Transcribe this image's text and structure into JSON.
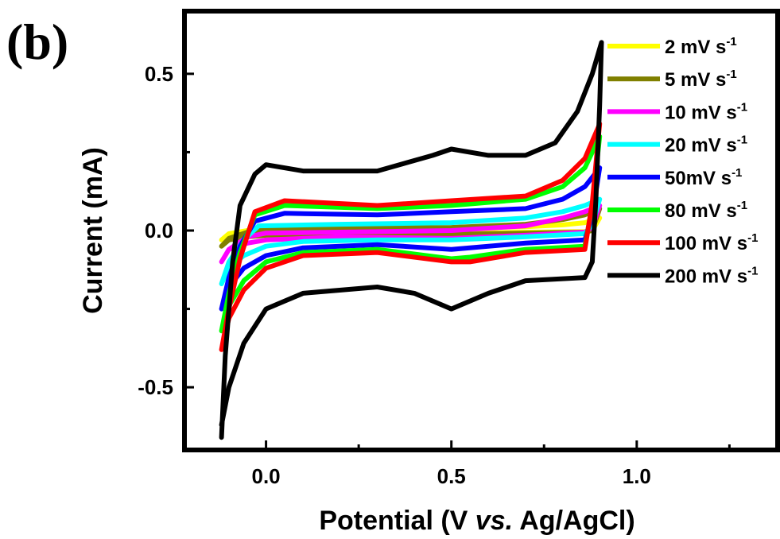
{
  "panel_label": "(b)",
  "colors": {
    "2 mV s-1": "#ffff00",
    "5 mV s-1": "#808000",
    "10 mV s-1": "#ff00ff",
    "20 mV s-1": "#00ffff",
    "50mV s-1": "#0000ff",
    "80 mV s-1": "#00ff00",
    "100 mV s-1": "#ff0000",
    "200 mV s-1": "#000000"
  },
  "chart_data": {
    "type": "line",
    "title": "",
    "xlabel_parts": [
      "Potential (V ",
      "vs.",
      " Ag/AgCl)"
    ],
    "ylabel": "Current (mA)",
    "xlim": [
      -0.22,
      1.38
    ],
    "ylim": [
      -0.7,
      0.7
    ],
    "xticks": [
      0.0,
      0.5,
      1.0
    ],
    "xtick_labels": [
      "0.0",
      "0.5",
      "1.0"
    ],
    "yticks": [
      -0.5,
      0.0,
      0.5
    ],
    "ytick_labels": [
      "-0.5",
      "0.0",
      "0.5"
    ],
    "grid": false,
    "legend_position": "top-right",
    "legend": [
      {
        "label": "2 mV s",
        "sup": "-1"
      },
      {
        "label": "5 mV s",
        "sup": "-1"
      },
      {
        "label": "10 mV s",
        "sup": "-1"
      },
      {
        "label": "20 mV s",
        "sup": "-1"
      },
      {
        "label": "50mV s",
        "sup": "-1"
      },
      {
        "label": "80 mV s",
        "sup": "-1"
      },
      {
        "label": "100 mV s",
        "sup": "-1"
      },
      {
        "label": "200 mV s",
        "sup": "-1"
      }
    ],
    "series": [
      {
        "name": "2 mV s-1",
        "anodic": [
          [
            -0.12,
            -0.03
          ],
          [
            -0.1,
            -0.01
          ],
          [
            -0.05,
            0.0
          ],
          [
            0.0,
            0.005
          ],
          [
            0.2,
            0.007
          ],
          [
            0.5,
            0.008
          ],
          [
            0.7,
            0.012
          ],
          [
            0.8,
            0.018
          ],
          [
            0.86,
            0.025
          ],
          [
            0.9,
            0.04
          ]
        ],
        "cathodic": [
          [
            0.9,
            0.04
          ],
          [
            0.88,
            0.0
          ],
          [
            0.86,
            -0.003
          ],
          [
            0.7,
            -0.005
          ],
          [
            0.5,
            -0.008
          ],
          [
            0.2,
            -0.009
          ],
          [
            0.0,
            -0.01
          ],
          [
            -0.05,
            -0.012
          ],
          [
            -0.1,
            -0.02
          ],
          [
            -0.12,
            -0.03
          ]
        ]
      },
      {
        "name": "5 mV s-1",
        "anodic": [
          [
            -0.12,
            -0.05
          ],
          [
            -0.1,
            -0.025
          ],
          [
            -0.05,
            -0.005
          ],
          [
            0.0,
            0.005
          ],
          [
            0.2,
            0.008
          ],
          [
            0.5,
            0.01
          ],
          [
            0.7,
            0.02
          ],
          [
            0.8,
            0.035
          ],
          [
            0.86,
            0.05
          ],
          [
            0.9,
            0.07
          ]
        ],
        "cathodic": [
          [
            0.9,
            0.07
          ],
          [
            0.88,
            0.0
          ],
          [
            0.86,
            -0.005
          ],
          [
            0.7,
            -0.008
          ],
          [
            0.5,
            -0.012
          ],
          [
            0.2,
            -0.012
          ],
          [
            0.0,
            -0.015
          ],
          [
            -0.05,
            -0.02
          ],
          [
            -0.1,
            -0.03
          ],
          [
            -0.12,
            -0.05
          ]
        ]
      },
      {
        "name": "10 mV s-1",
        "anodic": [
          [
            -0.12,
            -0.1
          ],
          [
            -0.1,
            -0.06
          ],
          [
            -0.05,
            -0.02
          ],
          [
            0.0,
            -0.008
          ],
          [
            0.2,
            -0.005
          ],
          [
            0.5,
            0.0
          ],
          [
            0.7,
            0.015
          ],
          [
            0.8,
            0.04
          ],
          [
            0.86,
            0.06
          ],
          [
            0.9,
            0.08
          ]
        ],
        "cathodic": [
          [
            0.9,
            0.08
          ],
          [
            0.88,
            0.01
          ],
          [
            0.86,
            -0.005
          ],
          [
            0.7,
            -0.015
          ],
          [
            0.5,
            -0.025
          ],
          [
            0.2,
            -0.02
          ],
          [
            0.0,
            -0.03
          ],
          [
            -0.05,
            -0.04
          ],
          [
            -0.1,
            -0.06
          ],
          [
            -0.12,
            -0.1
          ]
        ]
      },
      {
        "name": "20 mV s-1",
        "anodic": [
          [
            -0.12,
            -0.17
          ],
          [
            -0.1,
            -0.1
          ],
          [
            -0.06,
            -0.03
          ],
          [
            -0.02,
            0.015
          ],
          [
            0.2,
            0.02
          ],
          [
            0.5,
            0.025
          ],
          [
            0.7,
            0.04
          ],
          [
            0.8,
            0.06
          ],
          [
            0.86,
            0.08
          ],
          [
            0.9,
            0.1
          ]
        ],
        "cathodic": [
          [
            0.9,
            0.1
          ],
          [
            0.88,
            0.02
          ],
          [
            0.86,
            -0.01
          ],
          [
            0.7,
            -0.02
          ],
          [
            0.5,
            -0.03
          ],
          [
            0.3,
            -0.03
          ],
          [
            0.1,
            -0.035
          ],
          [
            0.0,
            -0.05
          ],
          [
            -0.06,
            -0.08
          ],
          [
            -0.1,
            -0.12
          ],
          [
            -0.12,
            -0.17
          ]
        ]
      },
      {
        "name": "50mV s-1",
        "anodic": [
          [
            -0.12,
            -0.25
          ],
          [
            -0.1,
            -0.15
          ],
          [
            -0.07,
            -0.05
          ],
          [
            -0.03,
            0.03
          ],
          [
            0.05,
            0.055
          ],
          [
            0.3,
            0.05
          ],
          [
            0.5,
            0.06
          ],
          [
            0.7,
            0.07
          ],
          [
            0.8,
            0.1
          ],
          [
            0.86,
            0.14
          ],
          [
            0.9,
            0.2
          ]
        ],
        "cathodic": [
          [
            0.9,
            0.2
          ],
          [
            0.88,
            0.05
          ],
          [
            0.86,
            -0.03
          ],
          [
            0.7,
            -0.04
          ],
          [
            0.55,
            -0.055
          ],
          [
            0.5,
            -0.06
          ],
          [
            0.3,
            -0.045
          ],
          [
            0.1,
            -0.055
          ],
          [
            0.0,
            -0.08
          ],
          [
            -0.06,
            -0.12
          ],
          [
            -0.1,
            -0.18
          ],
          [
            -0.12,
            -0.25
          ]
        ]
      },
      {
        "name": "80 mV s-1",
        "anodic": [
          [
            -0.12,
            -0.32
          ],
          [
            -0.1,
            -0.2
          ],
          [
            -0.07,
            -0.07
          ],
          [
            -0.03,
            0.05
          ],
          [
            0.05,
            0.08
          ],
          [
            0.3,
            0.07
          ],
          [
            0.5,
            0.08
          ],
          [
            0.7,
            0.1
          ],
          [
            0.8,
            0.14
          ],
          [
            0.86,
            0.2
          ],
          [
            0.9,
            0.3
          ]
        ],
        "cathodic": [
          [
            0.9,
            0.3
          ],
          [
            0.88,
            0.08
          ],
          [
            0.86,
            -0.05
          ],
          [
            0.7,
            -0.06
          ],
          [
            0.55,
            -0.085
          ],
          [
            0.5,
            -0.09
          ],
          [
            0.3,
            -0.06
          ],
          [
            0.1,
            -0.07
          ],
          [
            0.0,
            -0.1
          ],
          [
            -0.06,
            -0.16
          ],
          [
            -0.1,
            -0.24
          ],
          [
            -0.12,
            -0.32
          ]
        ]
      },
      {
        "name": "100 mV s-1",
        "anodic": [
          [
            -0.12,
            -0.38
          ],
          [
            -0.1,
            -0.25
          ],
          [
            -0.07,
            -0.09
          ],
          [
            -0.03,
            0.06
          ],
          [
            0.05,
            0.095
          ],
          [
            0.3,
            0.08
          ],
          [
            0.5,
            0.095
          ],
          [
            0.7,
            0.11
          ],
          [
            0.8,
            0.16
          ],
          [
            0.86,
            0.23
          ],
          [
            0.9,
            0.34
          ]
        ],
        "cathodic": [
          [
            0.9,
            0.34
          ],
          [
            0.88,
            0.09
          ],
          [
            0.86,
            -0.06
          ],
          [
            0.7,
            -0.07
          ],
          [
            0.55,
            -0.1
          ],
          [
            0.5,
            -0.1
          ],
          [
            0.3,
            -0.07
          ],
          [
            0.1,
            -0.08
          ],
          [
            0.0,
            -0.12
          ],
          [
            -0.06,
            -0.19
          ],
          [
            -0.1,
            -0.28
          ],
          [
            -0.12,
            -0.38
          ]
        ]
      },
      {
        "name": "200 mV s-1",
        "anodic": [
          [
            -0.12,
            -0.66
          ],
          [
            -0.11,
            -0.4
          ],
          [
            -0.09,
            -0.1
          ],
          [
            -0.07,
            0.08
          ],
          [
            -0.03,
            0.18
          ],
          [
            0.0,
            0.21
          ],
          [
            0.1,
            0.19
          ],
          [
            0.3,
            0.19
          ],
          [
            0.45,
            0.24
          ],
          [
            0.5,
            0.26
          ],
          [
            0.6,
            0.24
          ],
          [
            0.7,
            0.24
          ],
          [
            0.78,
            0.28
          ],
          [
            0.84,
            0.38
          ],
          [
            0.88,
            0.5
          ],
          [
            0.905,
            0.6
          ]
        ],
        "cathodic": [
          [
            0.905,
            0.6
          ],
          [
            0.9,
            0.4
          ],
          [
            0.89,
            0.1
          ],
          [
            0.88,
            -0.1
          ],
          [
            0.86,
            -0.15
          ],
          [
            0.7,
            -0.16
          ],
          [
            0.6,
            -0.2
          ],
          [
            0.5,
            -0.25
          ],
          [
            0.4,
            -0.2
          ],
          [
            0.3,
            -0.18
          ],
          [
            0.1,
            -0.2
          ],
          [
            0.0,
            -0.25
          ],
          [
            -0.06,
            -0.36
          ],
          [
            -0.1,
            -0.5
          ],
          [
            -0.12,
            -0.62
          ]
        ]
      }
    ]
  }
}
